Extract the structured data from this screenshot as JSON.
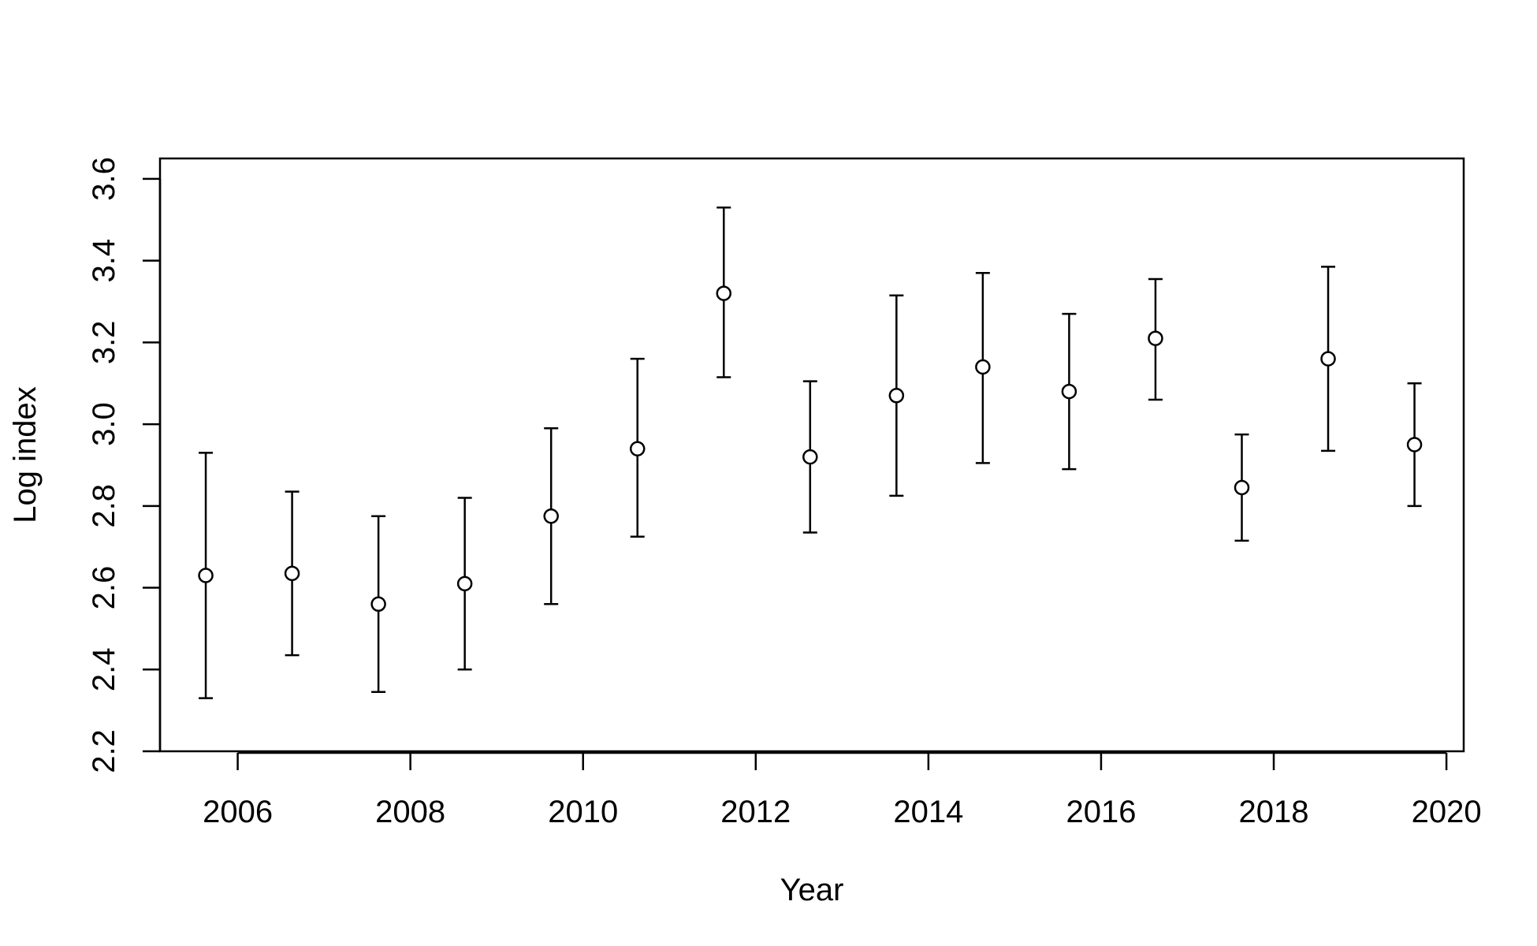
{
  "chart_data": {
    "type": "scatter",
    "title": "",
    "xlabel": "Year",
    "ylabel": "Log index",
    "xlim": [
      2005.1,
      2020.2
    ],
    "ylim": [
      2.2,
      3.65
    ],
    "xticks": [
      2006,
      2008,
      2010,
      2012,
      2014,
      2016,
      2018,
      2020
    ],
    "yticks": [
      2.2,
      2.4,
      2.6,
      2.8,
      3.0,
      3.2,
      3.4,
      3.6
    ],
    "ytick_labels": [
      "2.2",
      "2.4",
      "2.6",
      "2.8",
      "3.0",
      "3.2",
      "3.4",
      "3.6"
    ],
    "grid": false,
    "legend": "none",
    "colors": {
      "marker_fill": "#ffffff",
      "marker_stroke": "#000000",
      "line": "#000000"
    },
    "points": [
      {
        "x": 2005.63,
        "y": 2.63,
        "lower": 2.33,
        "upper": 2.93
      },
      {
        "x": 2006.63,
        "y": 2.635,
        "lower": 2.435,
        "upper": 2.835
      },
      {
        "x": 2007.63,
        "y": 2.56,
        "lower": 2.345,
        "upper": 2.775
      },
      {
        "x": 2008.63,
        "y": 2.61,
        "lower": 2.4,
        "upper": 2.82
      },
      {
        "x": 2009.63,
        "y": 2.775,
        "lower": 2.56,
        "upper": 2.99
      },
      {
        "x": 2010.63,
        "y": 2.94,
        "lower": 2.725,
        "upper": 3.16
      },
      {
        "x": 2011.63,
        "y": 3.32,
        "lower": 3.115,
        "upper": 3.53
      },
      {
        "x": 2012.63,
        "y": 2.92,
        "lower": 2.735,
        "upper": 3.105
      },
      {
        "x": 2013.63,
        "y": 3.07,
        "lower": 2.825,
        "upper": 3.315
      },
      {
        "x": 2014.63,
        "y": 3.14,
        "lower": 2.905,
        "upper": 3.37
      },
      {
        "x": 2015.63,
        "y": 3.08,
        "lower": 2.89,
        "upper": 3.27
      },
      {
        "x": 2016.63,
        "y": 3.21,
        "lower": 3.06,
        "upper": 3.355
      },
      {
        "x": 2017.63,
        "y": 2.845,
        "lower": 2.715,
        "upper": 2.975
      },
      {
        "x": 2018.63,
        "y": 3.16,
        "lower": 2.935,
        "upper": 3.385
      },
      {
        "x": 2019.63,
        "y": 2.95,
        "lower": 2.8,
        "upper": 3.1
      }
    ]
  }
}
